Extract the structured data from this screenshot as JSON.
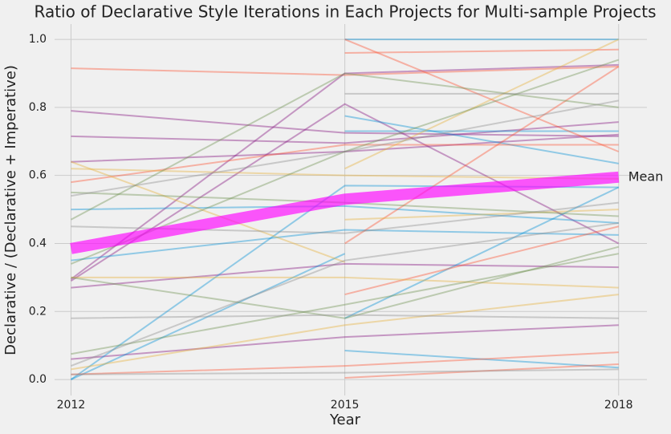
{
  "chart_data": {
    "type": "line",
    "title": "Ratio of Declarative Style Iterations in Each Projects for Multi-sample Projects",
    "x_label": "Year",
    "y_label": "Declarative / (Declarative + Imperative)",
    "x": [
      2012,
      2015,
      2018
    ],
    "xlim": [
      2011.82,
      2018.31
    ],
    "ylim": [
      -0.047,
      1.045
    ],
    "xticks": [
      2012,
      2015,
      2018
    ],
    "yticks": [
      {
        "value": 0,
        "label": "0.0"
      },
      0.2,
      0.4,
      0.6,
      0.8,
      {
        "value": 1,
        "label": "1.0"
      }
    ],
    "grid": true,
    "series": [
      {
        "color": "#fc4f30",
        "values": [
          0.915,
          0.895,
          0.92
        ]
      },
      {
        "color": "#810f7c",
        "values": [
          0.79,
          0.725,
          0.715
        ]
      },
      {
        "color": "#810f7c",
        "values": [
          0.715,
          0.695,
          0.757
        ]
      },
      {
        "color": "#810f7c",
        "values": [
          0.64,
          0.67,
          0.72
        ]
      },
      {
        "color": "#810f7c",
        "values": [
          0.295,
          0.9,
          0.925
        ]
      },
      {
        "color": "#810f7c",
        "values": [
          0.29,
          0.81,
          0.4
        ]
      },
      {
        "color": "#810f7c",
        "values": [
          0.27,
          0.34,
          0.33
        ]
      },
      {
        "color": "#810f7c",
        "values": [
          0.06,
          0.125,
          0.16
        ]
      },
      {
        "color": "#008fd5",
        "values": [
          0.0,
          0.57,
          0.565
        ]
      },
      {
        "color": "#008fd5",
        "values": [
          0.0,
          0.37,
          null
        ]
      },
      {
        "color": "#008fd5",
        "values": [
          null,
          0.18,
          0.565
        ]
      },
      {
        "color": "#008fd5",
        "values": [
          0.35,
          0.44,
          0.425
        ]
      },
      {
        "color": "#008fd5",
        "values": [
          0.5,
          0.51,
          0.46
        ]
      },
      {
        "color": "#008fd5",
        "values": [
          null,
          0.775,
          0.635
        ]
      },
      {
        "color": "#008fd5",
        "values": [
          null,
          1.0,
          1.0
        ]
      },
      {
        "color": "#008fd5",
        "values": [
          null,
          0.085,
          0.035
        ]
      },
      {
        "color": "#008fd5",
        "values": [
          null,
          0.73,
          0.73
        ]
      },
      {
        "color": "#fc4f30",
        "values": [
          0.015,
          0.04,
          0.08
        ]
      },
      {
        "color": "#fc4f30",
        "values": [
          0.58,
          0.69,
          0.69
        ]
      },
      {
        "color": "#fc4f30",
        "values": [
          null,
          1.0,
          0.67
        ]
      },
      {
        "color": "#fc4f30",
        "values": [
          null,
          0.96,
          0.97
        ]
      },
      {
        "color": "#fc4f30",
        "values": [
          null,
          0.4,
          0.92
        ]
      },
      {
        "color": "#fc4f30",
        "values": [
          null,
          0.25,
          0.45
        ]
      },
      {
        "color": "#fc4f30",
        "values": [
          null,
          0.005,
          0.045
        ]
      },
      {
        "color": "#e5ae38",
        "values": [
          0.64,
          0.345,
          null
        ]
      },
      {
        "color": "#e5ae38",
        "values": [
          0.3,
          0.3,
          0.27
        ]
      },
      {
        "color": "#e5ae38",
        "values": [
          0.03,
          0.16,
          0.25
        ]
      },
      {
        "color": "#e5ae38",
        "values": [
          0.62,
          0.6,
          0.59
        ]
      },
      {
        "color": "#e5ae38",
        "values": [
          null,
          0.62,
          1.0
        ]
      },
      {
        "color": "#e5ae38",
        "values": [
          null,
          0.47,
          0.5
        ]
      },
      {
        "color": "#6d904f",
        "values": [
          0.47,
          0.9,
          0.8
        ]
      },
      {
        "color": "#6d904f",
        "values": [
          0.55,
          0.52,
          0.48
        ]
      },
      {
        "color": "#6d904f",
        "values": [
          0.34,
          0.67,
          0.94
        ]
      },
      {
        "color": "#6d904f",
        "values": [
          0.075,
          0.22,
          0.37
        ]
      },
      {
        "color": "#6d904f",
        "values": [
          0.3,
          0.18,
          0.39
        ]
      },
      {
        "color": "#8b8b8b",
        "values": [
          0.18,
          0.19,
          0.18
        ]
      },
      {
        "color": "#8b8b8b",
        "values": [
          0.54,
          0.67,
          0.82
        ]
      },
      {
        "color": "#8b8b8b",
        "values": [
          0.015,
          0.02,
          0.03
        ]
      },
      {
        "color": "#8b8b8b",
        "values": [
          0.04,
          0.35,
          0.46
        ]
      },
      {
        "color": "#8b8b8b",
        "values": [
          null,
          0.84,
          0.84
        ]
      },
      {
        "color": "#8b8b8b",
        "values": [
          0.45,
          0.43,
          0.52
        ]
      },
      {
        "name": "Mean",
        "color": "#ff00ff",
        "values": [
          0.385,
          0.53,
          0.595
        ]
      }
    ]
  }
}
